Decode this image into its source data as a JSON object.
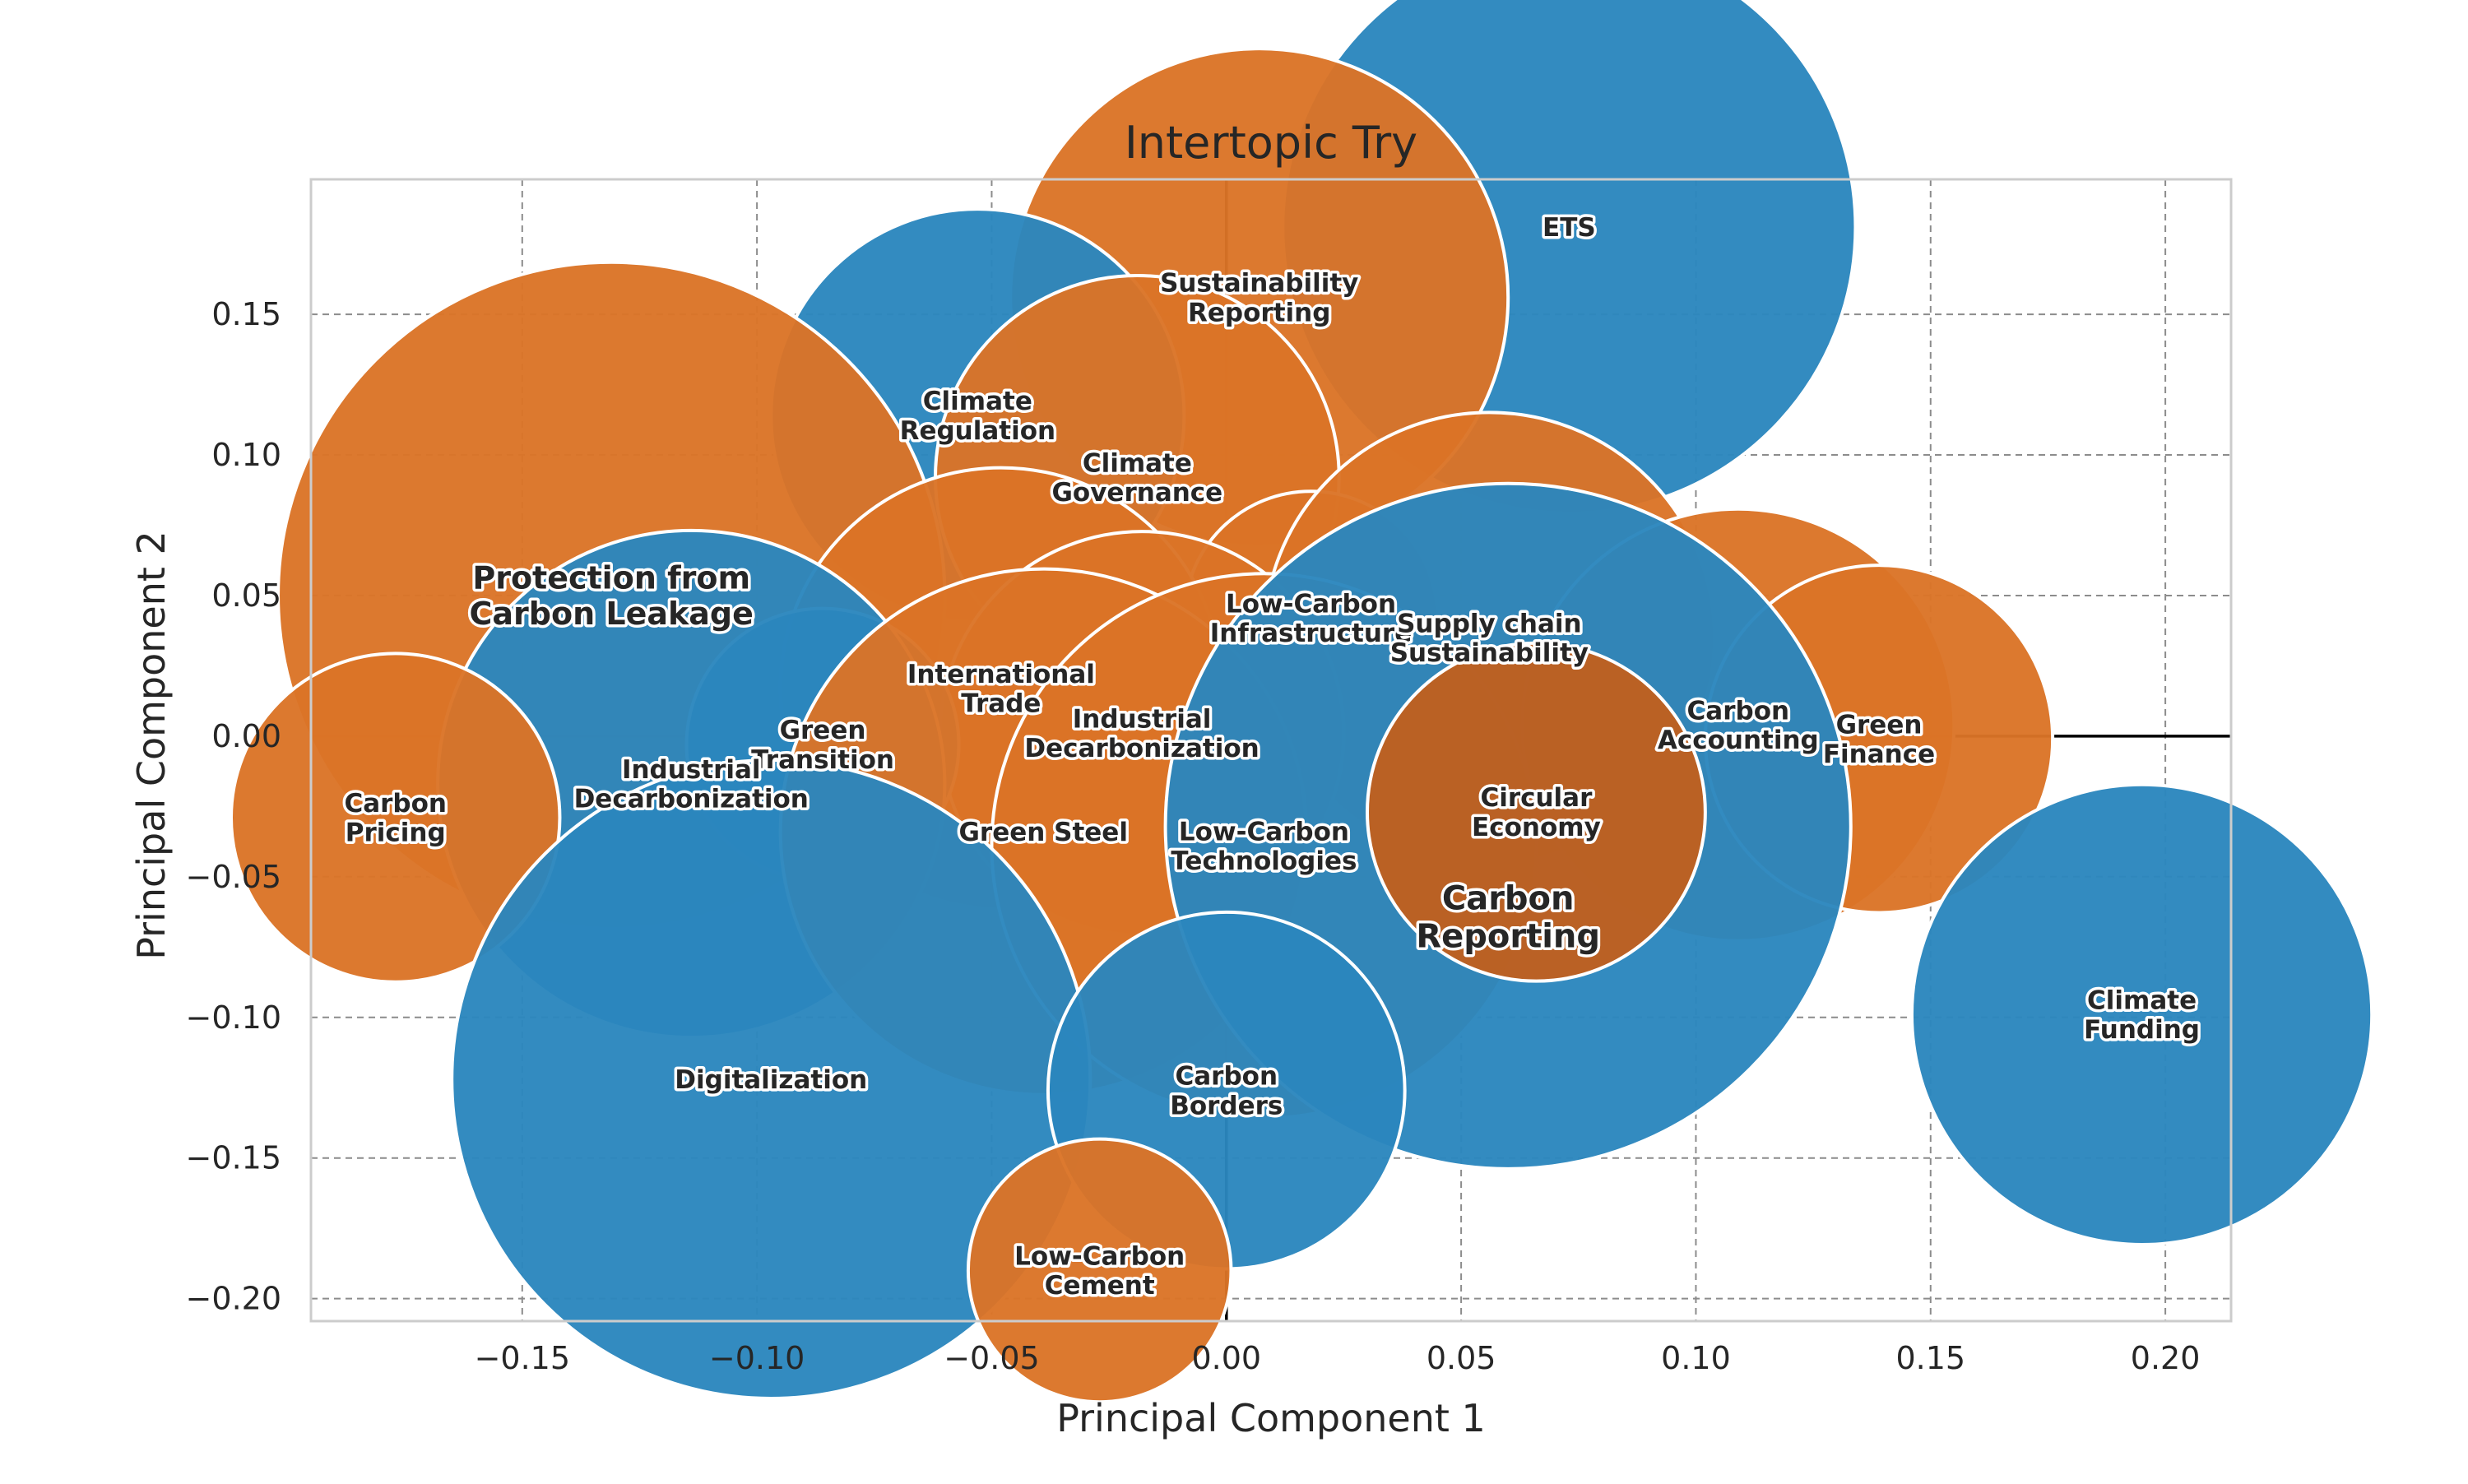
{
  "chart_data": {
    "type": "scatter",
    "title": "Intertopic Try",
    "xlabel": "Principal Component 1",
    "ylabel": "Principal Component 2",
    "xlim": [
      -0.195,
      0.214
    ],
    "ylim": [
      -0.208,
      0.198
    ],
    "xticks": [
      -0.15,
      -0.1,
      -0.05,
      0.0,
      0.05,
      0.1,
      0.15,
      0.2
    ],
    "xtick_labels": [
      "−0.15",
      "−0.10",
      "−0.05",
      "0.00",
      "0.05",
      "0.10",
      "0.15",
      "0.20"
    ],
    "yticks": [
      0.15,
      0.1,
      0.05,
      0.0,
      -0.05,
      -0.1,
      -0.15,
      -0.2
    ],
    "ytick_labels": [
      "0.15",
      "0.10",
      "0.05",
      "0.00",
      "−0.05",
      "−0.10",
      "−0.15",
      "−0.20"
    ],
    "grid": true,
    "colors": {
      "blue": "#2b86bd",
      "orange": "#db7426",
      "dark_orange": "#bf601e",
      "axis_line": "#000000",
      "grid": "#8c8c8c",
      "frame": "#cccccc"
    },
    "points": [
      {
        "label": "ETS",
        "x": 0.073,
        "y": 0.181,
        "size": 0.061,
        "color": "blue"
      },
      {
        "label": "Sustainability Reporting",
        "x": 0.007,
        "y": 0.156,
        "size": 0.053,
        "color": "orange"
      },
      {
        "label": "Climate Regulation",
        "x": -0.053,
        "y": 0.114,
        "size": 0.044,
        "color": "blue"
      },
      {
        "label": "Climate Governance",
        "x": -0.019,
        "y": 0.092,
        "size": 0.043,
        "color": "orange"
      },
      {
        "label": "Protection from Carbon Leakage",
        "x": -0.131,
        "y": 0.05,
        "size": 0.071,
        "color": "orange"
      },
      {
        "label": "Low-Carbon Infrastructure",
        "x": 0.018,
        "y": 0.042,
        "size": 0.027,
        "color": "orange"
      },
      {
        "label": "Supply chain Sustainability",
        "x": 0.056,
        "y": 0.035,
        "size": 0.048,
        "color": "orange"
      },
      {
        "label": "International Trade",
        "x": -0.048,
        "y": 0.017,
        "size": 0.047,
        "color": "orange"
      },
      {
        "label": "Industrial Decarbonization",
        "x": -0.018,
        "y": 0.001,
        "size": 0.043,
        "color": "orange"
      },
      {
        "label": "Carbon Accounting",
        "x": 0.109,
        "y": 0.004,
        "size": 0.046,
        "color": "orange"
      },
      {
        "label": "Green Finance",
        "x": 0.139,
        "y": -0.001,
        "size": 0.037,
        "color": "orange"
      },
      {
        "label": "Green Transition",
        "x": -0.086,
        "y": -0.003,
        "size": 0.029,
        "color": "blue"
      },
      {
        "label": "Industrial Decarbonization",
        "x": -0.114,
        "y": -0.017,
        "size": 0.054,
        "color": "blue"
      },
      {
        "label": "Carbon Pricing",
        "x": -0.177,
        "y": -0.029,
        "size": 0.035,
        "color": "orange"
      },
      {
        "label": "Green Steel",
        "x": -0.039,
        "y": -0.034,
        "size": 0.056,
        "color": "orange"
      },
      {
        "label": "Low-Carbon Technologies",
        "x": 0.008,
        "y": -0.039,
        "size": 0.058,
        "color": "orange"
      },
      {
        "label": "Carbon Reporting",
        "x": 0.06,
        "y": -0.032,
        "size": 0.073,
        "color": "blue"
      },
      {
        "label": "Circular Economy",
        "x": 0.066,
        "y": -0.027,
        "size": 0.036,
        "color": "dark_orange"
      },
      {
        "label": "Climate Funding",
        "x": 0.195,
        "y": -0.099,
        "size": 0.049,
        "color": "blue"
      },
      {
        "label": "Digitalization",
        "x": -0.097,
        "y": -0.122,
        "size": 0.068,
        "color": "blue"
      },
      {
        "label": "Carbon Borders",
        "x": 0.0,
        "y": -0.126,
        "size": 0.038,
        "color": "blue"
      },
      {
        "label": "Low-Carbon Cement",
        "x": -0.027,
        "y": -0.19,
        "size": 0.028,
        "color": "orange"
      }
    ]
  }
}
